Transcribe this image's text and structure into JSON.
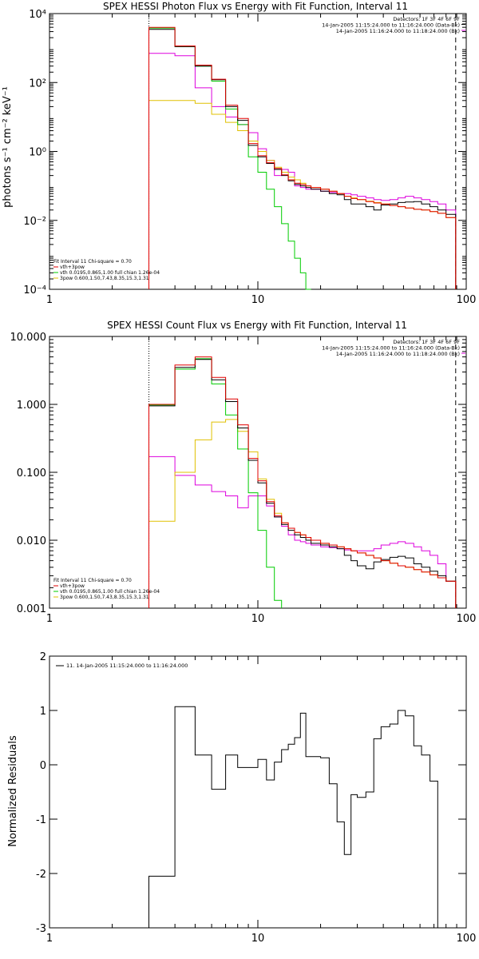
{
  "chart_data": [
    {
      "type": "line",
      "title": "SPEX HESSI Photon Flux vs Energy with Fit Function, Interval 11",
      "ylabel": "photons s⁻¹ cm⁻² keV⁻¹",
      "xlabel": "",
      "xscale": "log",
      "yscale": "log",
      "xlim": [
        1,
        100
      ],
      "ylim": [
        0.0001,
        10000
      ],
      "xticks": [
        1,
        10,
        100
      ],
      "xtick_labels": [
        "1",
        "10",
        "100"
      ],
      "yticks": [
        0.0001,
        0.01,
        1,
        100,
        10000
      ],
      "ytick_labels": [
        "10⁻⁴",
        "10⁻²",
        "10⁰",
        "10²",
        "10⁴"
      ],
      "vlines": [
        3.0,
        89.0
      ],
      "header": [
        "Detectors: 1F 3F 4F 6F 9F",
        "14-Jan-2005 11:15:24.000 to 11:16:24.000 (Data-Bk)",
        "14-Jan-2005 11:16:24.000 to 11:18:24.000 (Bk)"
      ],
      "legend": [
        "Fit Interval 11   Chi-square = 0.70",
        "vth+3pow",
        "vth 0.0195,0.865,1.00  full chian 1.26e-04",
        "3pow 0.600,1.50,7.43,8.35,15.3,1.31"
      ],
      "energy_edges": [
        3,
        4,
        5,
        6,
        7,
        8,
        9,
        10,
        11,
        12,
        13,
        14,
        15,
        16,
        17,
        18,
        20,
        22,
        24,
        26,
        28,
        30,
        33,
        36,
        39,
        43,
        47,
        51,
        56,
        61,
        67,
        73,
        80,
        89
      ],
      "series": [
        {
          "name": "Data-Bk",
          "color": "#000000",
          "values": [
            3500,
            1100,
            300,
            120,
            20,
            8,
            1.5,
            0.7,
            0.45,
            0.3,
            0.2,
            0.14,
            0.11,
            0.1,
            0.09,
            0.08,
            0.07,
            0.06,
            0.055,
            0.04,
            0.03,
            0.03,
            0.025,
            0.02,
            0.028,
            0.03,
            0.033,
            0.034,
            0.035,
            0.03,
            0.025,
            0.02,
            0.015
          ]
        },
        {
          "name": "vth+3pow",
          "color": "#e00000",
          "values": [
            4000,
            1150,
            320,
            125,
            22,
            9,
            1.7,
            0.75,
            0.47,
            0.32,
            0.21,
            0.15,
            0.12,
            0.11,
            0.1,
            0.09,
            0.08,
            0.07,
            0.06,
            0.05,
            0.043,
            0.04,
            0.035,
            0.032,
            0.03,
            0.027,
            0.025,
            0.023,
            0.021,
            0.02,
            0.018,
            0.016,
            0.012
          ]
        },
        {
          "name": "vth",
          "color": "#00cc00",
          "values": [
            3800,
            1100,
            300,
            110,
            17,
            6,
            0.7,
            0.25,
            0.08,
            0.025,
            0.008,
            0.0025,
            0.0008,
            0.0003,
            0.0001
          ]
        },
        {
          "name": "3pow",
          "color": "#e0c000",
          "values": [
            30,
            30,
            25,
            12,
            7,
            4,
            2,
            1.0,
            0.55,
            0.35,
            0.25,
            0.18,
            0.15,
            0.12,
            0.1,
            0.09,
            0.08,
            0.07,
            0.06,
            0.05,
            0.045,
            0.04,
            0.036,
            0.033,
            0.03,
            0.027,
            0.025,
            0.023,
            0.021,
            0.02,
            0.018,
            0.016,
            0.012
          ]
        },
        {
          "name": "Bk",
          "color": "#dd00dd",
          "values": [
            700,
            600,
            70,
            20,
            10,
            6,
            3.5,
            1.2,
            0.55,
            0.2,
            0.3,
            0.25,
            0.1,
            0.09,
            0.08,
            0.08,
            0.07,
            0.065,
            0.06,
            0.06,
            0.055,
            0.05,
            0.045,
            0.04,
            0.038,
            0.04,
            0.045,
            0.05,
            0.045,
            0.04,
            0.035,
            0.03,
            0.02
          ]
        }
      ]
    },
    {
      "type": "line",
      "title": "SPEX HESSI Count Flux vs Energy with Fit Function, Interval 11",
      "ylabel": "",
      "xlabel": "",
      "xscale": "log",
      "yscale": "log",
      "xlim": [
        1,
        100
      ],
      "ylim": [
        0.001,
        10
      ],
      "xticks": [
        1,
        10,
        100
      ],
      "xtick_labels": [
        "1",
        "10",
        "100"
      ],
      "yticks": [
        0.001,
        0.01,
        0.1,
        1,
        10
      ],
      "ytick_labels": [
        "0.001",
        "0.010",
        "0.100",
        "1.000",
        "10.000"
      ],
      "vlines": [
        3.0,
        89.0
      ],
      "header": [
        "Detectors: 1F 3F 4F 6F 9F",
        "14-Jan-2005 11:15:24.000 to 11:16:24.000 (Data-Bk)",
        "14-Jan-2005 11:16:24.000 to 11:18:24.000 (Bk)"
      ],
      "legend": [
        "Fit Interval 11   Chi-square = 0.70",
        "vth+3pow",
        "vth 0.0195,0.865,1.00  full chian 1.26e-04",
        "3pow 0.600,1.50,7.43,8.35,15.3,1.31"
      ],
      "energy_edges": [
        3,
        4,
        5,
        6,
        7,
        8,
        9,
        10,
        11,
        12,
        13,
        14,
        15,
        16,
        17,
        18,
        20,
        22,
        24,
        26,
        28,
        30,
        33,
        36,
        39,
        43,
        47,
        51,
        56,
        61,
        67,
        73,
        80,
        89
      ],
      "series": [
        {
          "name": "Data-Bk",
          "color": "#000000",
          "values": [
            0.95,
            3.5,
            4.6,
            2.3,
            1.1,
            0.45,
            0.15,
            0.07,
            0.035,
            0.022,
            0.017,
            0.014,
            0.012,
            0.011,
            0.01,
            0.009,
            0.0085,
            0.008,
            0.0075,
            0.006,
            0.005,
            0.0042,
            0.0038,
            0.0048,
            0.0052,
            0.0056,
            0.0058,
            0.0055,
            0.0045,
            0.004,
            0.0035,
            0.003,
            0.0025
          ]
        },
        {
          "name": "vth+3pow",
          "color": "#e00000",
          "values": [
            1.0,
            3.8,
            5.0,
            2.5,
            1.2,
            0.5,
            0.16,
            0.075,
            0.037,
            0.023,
            0.018,
            0.015,
            0.013,
            0.012,
            0.011,
            0.01,
            0.009,
            0.0085,
            0.008,
            0.0075,
            0.007,
            0.0065,
            0.006,
            0.0055,
            0.005,
            0.0046,
            0.0042,
            0.004,
            0.0037,
            0.0034,
            0.0031,
            0.0028,
            0.0025
          ]
        },
        {
          "name": "vth",
          "color": "#00cc00",
          "values": [
            0.98,
            3.3,
            4.7,
            2.0,
            0.7,
            0.22,
            0.05,
            0.014,
            0.004,
            0.0013
          ]
        },
        {
          "name": "3pow",
          "color": "#e0c000",
          "values": [
            0.019,
            0.1,
            0.3,
            0.55,
            0.6,
            0.4,
            0.2,
            0.08,
            0.04,
            0.025,
            0.018,
            0.015,
            0.013,
            0.012,
            0.011,
            0.01,
            0.009,
            0.0085,
            0.008,
            0.0075,
            0.007,
            0.0065,
            0.006,
            0.0055,
            0.005,
            0.0046,
            0.0042,
            0.004,
            0.0037,
            0.0034,
            0.0031,
            0.0028,
            0.0025
          ]
        },
        {
          "name": "Bk",
          "color": "#dd00dd",
          "values": [
            0.17,
            0.09,
            0.065,
            0.052,
            0.045,
            0.03,
            0.045,
            0.045,
            0.032,
            0.022,
            0.016,
            0.012,
            0.01,
            0.0095,
            0.009,
            0.0085,
            0.008,
            0.0078,
            0.0075,
            0.0072,
            0.007,
            0.007,
            0.007,
            0.0075,
            0.0085,
            0.009,
            0.0095,
            0.009,
            0.008,
            0.007,
            0.006,
            0.0045,
            0.0025
          ]
        }
      ]
    },
    {
      "type": "line",
      "title": "",
      "ylabel": "Normalized Residuals",
      "xlabel": "",
      "xscale": "log",
      "xlim": [
        1,
        100
      ],
      "ylim": [
        -3,
        2
      ],
      "xticks": [
        1,
        10,
        100
      ],
      "xtick_labels": [
        "1",
        "10",
        "100"
      ],
      "yticks": [
        -3,
        -2,
        -1,
        0,
        1,
        2
      ],
      "ytick_labels": [
        "-3",
        "-2",
        "-1",
        "0",
        "1",
        "2"
      ],
      "legend": [
        "11. 14-Jan-2005 11:15:24.000 to 11:16:24.000"
      ],
      "energy_edges": [
        3,
        4,
        5,
        6,
        7,
        8,
        9,
        10,
        11,
        12,
        13,
        14,
        15,
        16,
        17,
        18,
        20,
        22,
        24,
        26,
        28,
        30,
        33,
        36,
        39,
        43,
        47,
        51,
        56,
        61,
        67,
        73,
        80,
        89
      ],
      "series": [
        {
          "name": "",
          "color": "#000000",
          "values": [
            -2.05,
            1.07,
            0.18,
            -0.45,
            0.18,
            -0.05,
            -0.05,
            0.1,
            -0.28,
            0.05,
            0.28,
            0.38,
            0.5,
            0.95,
            0.15,
            0.15,
            0.13,
            -0.35,
            -1.05,
            -1.65,
            -0.55,
            -0.6,
            -0.5,
            0.48,
            0.7,
            0.75,
            1.0,
            0.9,
            0.35,
            0.18,
            -0.3,
            -3.0,
            -3.0
          ]
        }
      ]
    }
  ]
}
